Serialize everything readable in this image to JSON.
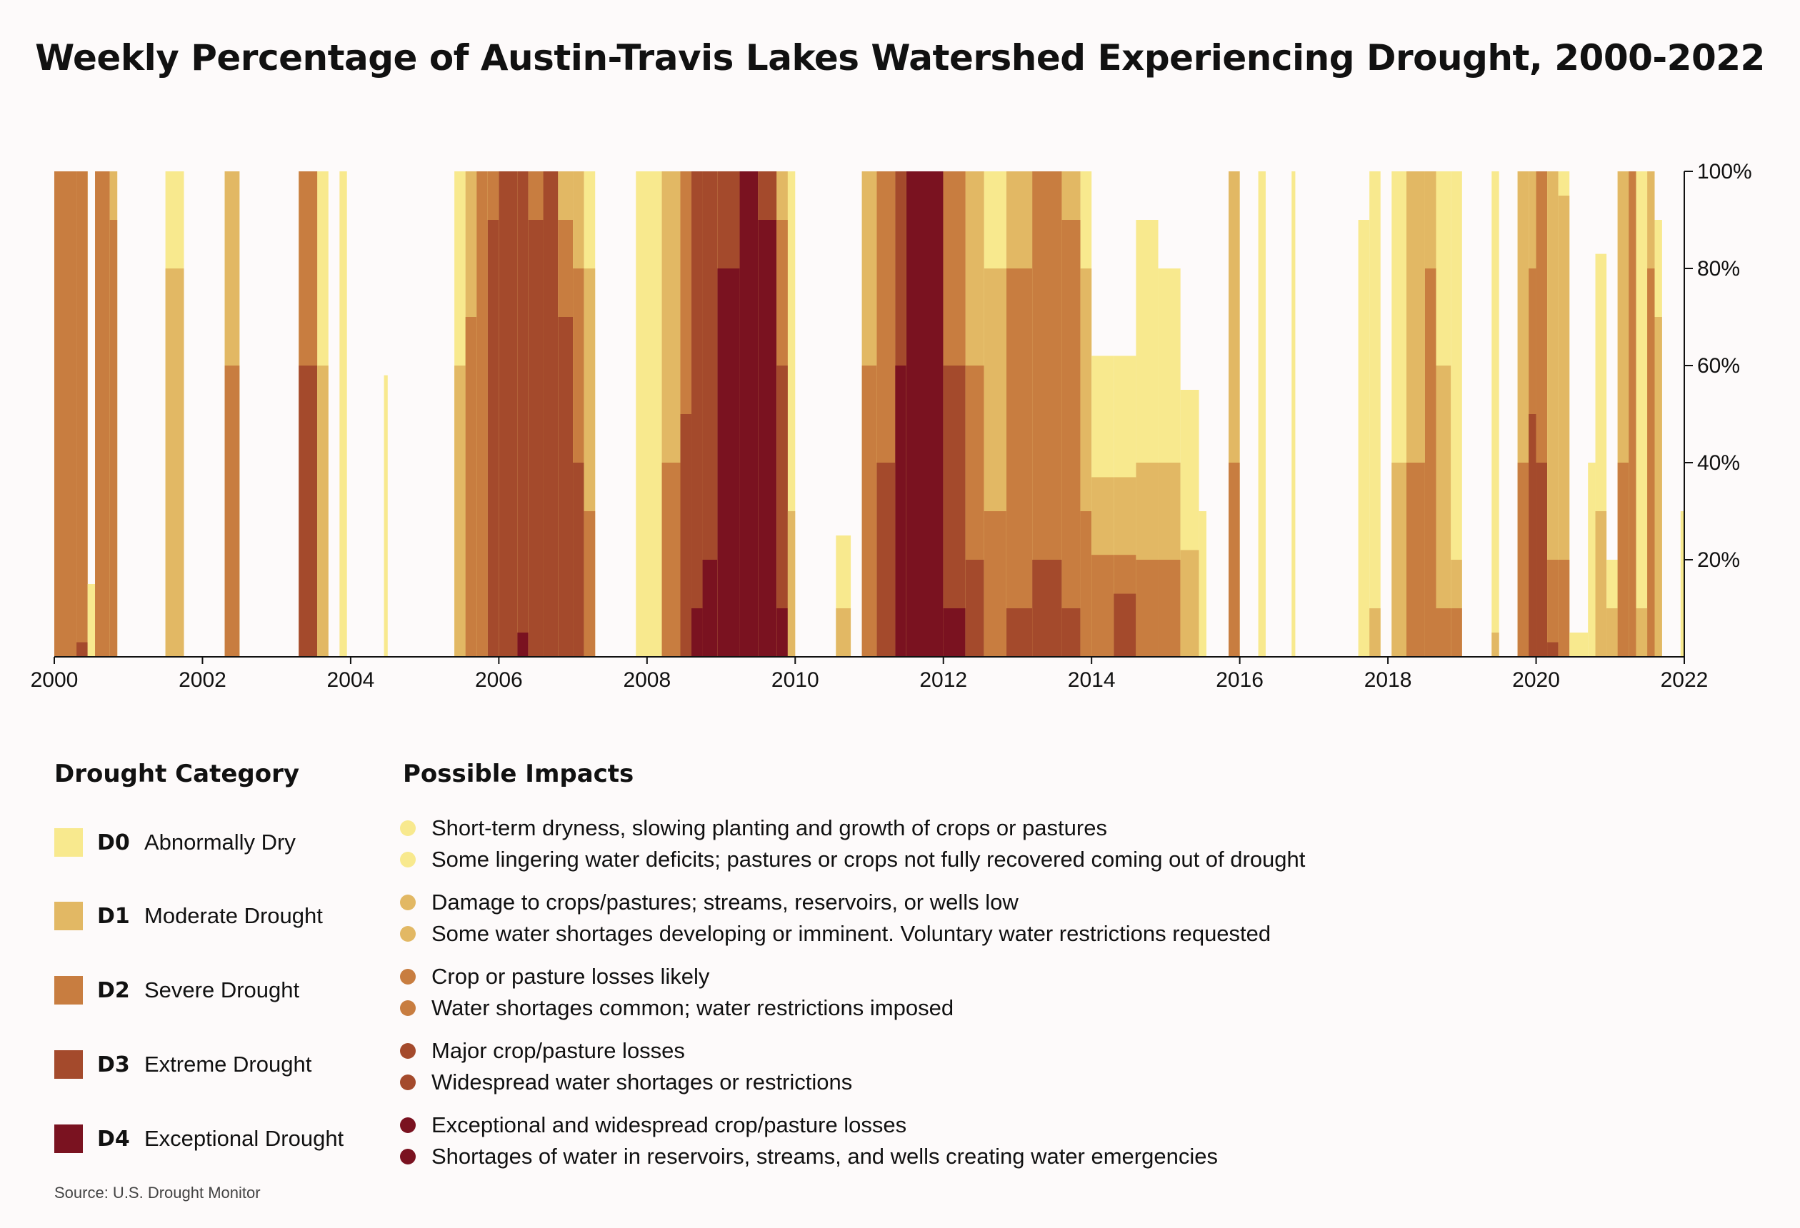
{
  "title": "Weekly Percentage of Austin-Travis Lakes Watershed Experiencing Drought, 2000-2022",
  "legend": {
    "heading": "Drought Category",
    "categories": [
      {
        "code": "D0",
        "name": "Abnormally Dry",
        "color": "#f8e98e"
      },
      {
        "code": "D1",
        "name": "Moderate Drought",
        "color": "#e2b864"
      },
      {
        "code": "D2",
        "name": "Severe Drought",
        "color": "#c87d40"
      },
      {
        "code": "D3",
        "name": "Extreme Drought",
        "color": "#a44a2c"
      },
      {
        "code": "D4",
        "name": "Exceptional Drought",
        "color": "#7a1220"
      }
    ]
  },
  "impacts": {
    "heading": "Possible Impacts",
    "groups": [
      [
        "Short-term dryness, slowing planting and growth of crops or pastures",
        "Some lingering water deficits; pastures or crops not fully recovered coming out of drought"
      ],
      [
        "Damage to crops/pastures; streams, reservoirs, or wells low",
        "Some water shortages developing or imminent. Voluntary water restrictions requested"
      ],
      [
        "Crop or pasture losses likely",
        "Water shortages common; water restrictions imposed"
      ],
      [
        "Major crop/pasture losses",
        "Widespread water shortages or restrictions"
      ],
      [
        "Exceptional and widespread crop/pasture losses",
        "Shortages of water in reservoirs, streams, and wells creating water emergencies"
      ]
    ]
  },
  "source": "Source: U.S. Drought Monitor",
  "chart_data": {
    "type": "area",
    "title": "Weekly Percentage of Austin-Travis Lakes Watershed Experiencing Drought, 2000-2022",
    "xlabel": "",
    "ylabel": "",
    "xlim": [
      2000,
      2022
    ],
    "ylim": [
      0,
      100
    ],
    "x_ticks": [
      "2000",
      "2002",
      "2004",
      "2006",
      "2008",
      "2010",
      "2012",
      "2014",
      "2016",
      "2018",
      "2020",
      "2022"
    ],
    "y_ticks": [
      "20%",
      "40%",
      "60%",
      "80%",
      "100%"
    ],
    "series_order": [
      "D0",
      "D1",
      "D2",
      "D3",
      "D4"
    ],
    "note": "Approximate cumulative percent of area in each category or worse, by date (decimal years); values hold until next point.",
    "periods": [
      {
        "x": 2000.0,
        "D0": 100,
        "D1": 100,
        "D2": 100,
        "D3": 0,
        "D4": 0
      },
      {
        "x": 2000.3,
        "D0": 100,
        "D1": 100,
        "D2": 100,
        "D3": 3,
        "D4": 0
      },
      {
        "x": 2000.45,
        "D0": 15,
        "D1": 0,
        "D2": 0,
        "D3": 0,
        "D4": 0
      },
      {
        "x": 2000.55,
        "D0": 100,
        "D1": 100,
        "D2": 100,
        "D3": 0,
        "D4": 0
      },
      {
        "x": 2000.75,
        "D0": 100,
        "D1": 100,
        "D2": 90,
        "D3": 0,
        "D4": 0
      },
      {
        "x": 2000.85,
        "D0": 0,
        "D1": 0,
        "D2": 0,
        "D3": 0,
        "D4": 0
      },
      {
        "x": 2001.5,
        "D0": 100,
        "D1": 80,
        "D2": 0,
        "D3": 0,
        "D4": 0
      },
      {
        "x": 2001.75,
        "D0": 0,
        "D1": 0,
        "D2": 0,
        "D3": 0,
        "D4": 0
      },
      {
        "x": 2002.3,
        "D0": 100,
        "D1": 100,
        "D2": 60,
        "D3": 0,
        "D4": 0
      },
      {
        "x": 2002.5,
        "D0": 0,
        "D1": 0,
        "D2": 0,
        "D3": 0,
        "D4": 0
      },
      {
        "x": 2003.3,
        "D0": 100,
        "D1": 100,
        "D2": 100,
        "D3": 60,
        "D4": 0
      },
      {
        "x": 2003.55,
        "D0": 100,
        "D1": 60,
        "D2": 0,
        "D3": 0,
        "D4": 0
      },
      {
        "x": 2003.7,
        "D0": 0,
        "D1": 0,
        "D2": 0,
        "D3": 0,
        "D4": 0
      },
      {
        "x": 2003.85,
        "D0": 100,
        "D1": 0,
        "D2": 0,
        "D3": 0,
        "D4": 0
      },
      {
        "x": 2003.95,
        "D0": 0,
        "D1": 0,
        "D2": 0,
        "D3": 0,
        "D4": 0
      },
      {
        "x": 2004.45,
        "D0": 58,
        "D1": 0,
        "D2": 0,
        "D3": 0,
        "D4": 0
      },
      {
        "x": 2004.5,
        "D0": 0,
        "D1": 0,
        "D2": 0,
        "D3": 0,
        "D4": 0
      },
      {
        "x": 2005.4,
        "D0": 100,
        "D1": 60,
        "D2": 0,
        "D3": 0,
        "D4": 0
      },
      {
        "x": 2005.55,
        "D0": 100,
        "D1": 100,
        "D2": 70,
        "D3": 0,
        "D4": 0
      },
      {
        "x": 2005.7,
        "D0": 100,
        "D1": 100,
        "D2": 100,
        "D3": 0,
        "D4": 0
      },
      {
        "x": 2005.85,
        "D0": 100,
        "D1": 100,
        "D2": 100,
        "D3": 90,
        "D4": 0
      },
      {
        "x": 2006.0,
        "D0": 100,
        "D1": 100,
        "D2": 100,
        "D3": 100,
        "D4": 0
      },
      {
        "x": 2006.25,
        "D0": 100,
        "D1": 100,
        "D2": 100,
        "D3": 100,
        "D4": 5
      },
      {
        "x": 2006.4,
        "D0": 100,
        "D1": 100,
        "D2": 100,
        "D3": 90,
        "D4": 0
      },
      {
        "x": 2006.6,
        "D0": 100,
        "D1": 100,
        "D2": 100,
        "D3": 100,
        "D4": 0
      },
      {
        "x": 2006.8,
        "D0": 100,
        "D1": 100,
        "D2": 90,
        "D3": 70,
        "D4": 0
      },
      {
        "x": 2007.0,
        "D0": 100,
        "D1": 100,
        "D2": 80,
        "D3": 40,
        "D4": 0
      },
      {
        "x": 2007.15,
        "D0": 100,
        "D1": 80,
        "D2": 30,
        "D3": 0,
        "D4": 0
      },
      {
        "x": 2007.3,
        "D0": 0,
        "D1": 0,
        "D2": 0,
        "D3": 0,
        "D4": 0
      },
      {
        "x": 2007.85,
        "D0": 100,
        "D1": 0,
        "D2": 0,
        "D3": 0,
        "D4": 0
      },
      {
        "x": 2008.2,
        "D0": 100,
        "D1": 100,
        "D2": 40,
        "D3": 0,
        "D4": 0
      },
      {
        "x": 2008.45,
        "D0": 100,
        "D1": 100,
        "D2": 100,
        "D3": 50,
        "D4": 0
      },
      {
        "x": 2008.6,
        "D0": 100,
        "D1": 100,
        "D2": 100,
        "D3": 100,
        "D4": 10
      },
      {
        "x": 2008.75,
        "D0": 100,
        "D1": 100,
        "D2": 100,
        "D3": 100,
        "D4": 20
      },
      {
        "x": 2008.95,
        "D0": 100,
        "D1": 100,
        "D2": 100,
        "D3": 100,
        "D4": 80
      },
      {
        "x": 2009.25,
        "D0": 100,
        "D1": 100,
        "D2": 100,
        "D3": 100,
        "D4": 100
      },
      {
        "x": 2009.5,
        "D0": 100,
        "D1": 100,
        "D2": 100,
        "D3": 100,
        "D4": 90
      },
      {
        "x": 2009.75,
        "D0": 100,
        "D1": 100,
        "D2": 90,
        "D3": 60,
        "D4": 10
      },
      {
        "x": 2009.9,
        "D0": 100,
        "D1": 30,
        "D2": 0,
        "D3": 0,
        "D4": 0
      },
      {
        "x": 2010.0,
        "D0": 0,
        "D1": 0,
        "D2": 0,
        "D3": 0,
        "D4": 0
      },
      {
        "x": 2010.55,
        "D0": 25,
        "D1": 10,
        "D2": 0,
        "D3": 0,
        "D4": 0
      },
      {
        "x": 2010.75,
        "D0": 0,
        "D1": 0,
        "D2": 0,
        "D3": 0,
        "D4": 0
      },
      {
        "x": 2010.9,
        "D0": 100,
        "D1": 100,
        "D2": 60,
        "D3": 0,
        "D4": 0
      },
      {
        "x": 2011.1,
        "D0": 100,
        "D1": 100,
        "D2": 100,
        "D3": 40,
        "D4": 0
      },
      {
        "x": 2011.35,
        "D0": 100,
        "D1": 100,
        "D2": 100,
        "D3": 100,
        "D4": 60
      },
      {
        "x": 2011.5,
        "D0": 100,
        "D1": 100,
        "D2": 100,
        "D3": 100,
        "D4": 100
      },
      {
        "x": 2012.0,
        "D0": 100,
        "D1": 100,
        "D2": 100,
        "D3": 60,
        "D4": 10
      },
      {
        "x": 2012.3,
        "D0": 100,
        "D1": 100,
        "D2": 60,
        "D3": 20,
        "D4": 0
      },
      {
        "x": 2012.55,
        "D0": 100,
        "D1": 80,
        "D2": 30,
        "D3": 0,
        "D4": 0
      },
      {
        "x": 2012.85,
        "D0": 100,
        "D1": 100,
        "D2": 80,
        "D3": 10,
        "D4": 0
      },
      {
        "x": 2013.2,
        "D0": 100,
        "D1": 100,
        "D2": 100,
        "D3": 20,
        "D4": 0
      },
      {
        "x": 2013.6,
        "D0": 100,
        "D1": 100,
        "D2": 90,
        "D3": 10,
        "D4": 0
      },
      {
        "x": 2013.85,
        "D0": 100,
        "D1": 80,
        "D2": 30,
        "D3": 0,
        "D4": 0
      },
      {
        "x": 2014.0,
        "D0": 62,
        "D1": 37,
        "D2": 21,
        "D3": 0,
        "D4": 0
      },
      {
        "x": 2014.3,
        "D0": 62,
        "D1": 37,
        "D2": 21,
        "D3": 13,
        "D4": 0
      },
      {
        "x": 2014.6,
        "D0": 90,
        "D1": 40,
        "D2": 20,
        "D3": 0,
        "D4": 0
      },
      {
        "x": 2014.9,
        "D0": 80,
        "D1": 40,
        "D2": 20,
        "D3": 0,
        "D4": 0
      },
      {
        "x": 2015.2,
        "D0": 55,
        "D1": 22,
        "D2": 0,
        "D3": 0,
        "D4": 0
      },
      {
        "x": 2015.45,
        "D0": 30,
        "D1": 0,
        "D2": 0,
        "D3": 0,
        "D4": 0
      },
      {
        "x": 2015.55,
        "D0": 0,
        "D1": 0,
        "D2": 0,
        "D3": 0,
        "D4": 0
      },
      {
        "x": 2015.85,
        "D0": 100,
        "D1": 100,
        "D2": 40,
        "D3": 0,
        "D4": 0
      },
      {
        "x": 2016.0,
        "D0": 0,
        "D1": 0,
        "D2": 0,
        "D3": 0,
        "D4": 0
      },
      {
        "x": 2016.25,
        "D0": 100,
        "D1": 0,
        "D2": 0,
        "D3": 0,
        "D4": 0
      },
      {
        "x": 2016.35,
        "D0": 0,
        "D1": 0,
        "D2": 0,
        "D3": 0,
        "D4": 0
      },
      {
        "x": 2016.7,
        "D0": 100,
        "D1": 0,
        "D2": 0,
        "D3": 0,
        "D4": 0
      },
      {
        "x": 2016.75,
        "D0": 0,
        "D1": 0,
        "D2": 0,
        "D3": 0,
        "D4": 0
      },
      {
        "x": 2017.6,
        "D0": 90,
        "D1": 0,
        "D2": 0,
        "D3": 0,
        "D4": 0
      },
      {
        "x": 2017.75,
        "D0": 100,
        "D1": 10,
        "D2": 0,
        "D3": 0,
        "D4": 0
      },
      {
        "x": 2017.9,
        "D0": 0,
        "D1": 0,
        "D2": 0,
        "D3": 0,
        "D4": 0
      },
      {
        "x": 2018.05,
        "D0": 100,
        "D1": 40,
        "D2": 0,
        "D3": 0,
        "D4": 0
      },
      {
        "x": 2018.25,
        "D0": 100,
        "D1": 100,
        "D2": 40,
        "D3": 0,
        "D4": 0
      },
      {
        "x": 2018.5,
        "D0": 100,
        "D1": 100,
        "D2": 80,
        "D3": 0,
        "D4": 0
      },
      {
        "x": 2018.65,
        "D0": 100,
        "D1": 60,
        "D2": 10,
        "D3": 0,
        "D4": 0
      },
      {
        "x": 2018.85,
        "D0": 100,
        "D1": 20,
        "D2": 10,
        "D3": 0,
        "D4": 0
      },
      {
        "x": 2019.0,
        "D0": 0,
        "D1": 0,
        "D2": 0,
        "D3": 0,
        "D4": 0
      },
      {
        "x": 2019.4,
        "D0": 100,
        "D1": 5,
        "D2": 0,
        "D3": 0,
        "D4": 0
      },
      {
        "x": 2019.5,
        "D0": 0,
        "D1": 0,
        "D2": 0,
        "D3": 0,
        "D4": 0
      },
      {
        "x": 2019.75,
        "D0": 100,
        "D1": 100,
        "D2": 40,
        "D3": 0,
        "D4": 0
      },
      {
        "x": 2019.9,
        "D0": 100,
        "D1": 100,
        "D2": 80,
        "D3": 50,
        "D4": 0
      },
      {
        "x": 2020.0,
        "D0": 100,
        "D1": 100,
        "D2": 100,
        "D3": 40,
        "D4": 0
      },
      {
        "x": 2020.15,
        "D0": 100,
        "D1": 100,
        "D2": 20,
        "D3": 3,
        "D4": 0
      },
      {
        "x": 2020.3,
        "D0": 100,
        "D1": 95,
        "D2": 20,
        "D3": 0,
        "D4": 0
      },
      {
        "x": 2020.45,
        "D0": 5,
        "D1": 0,
        "D2": 0,
        "D3": 0,
        "D4": 0
      },
      {
        "x": 2020.7,
        "D0": 40,
        "D1": 0,
        "D2": 0,
        "D3": 0,
        "D4": 0
      },
      {
        "x": 2020.8,
        "D0": 83,
        "D1": 30,
        "D2": 0,
        "D3": 0,
        "D4": 0
      },
      {
        "x": 2020.95,
        "D0": 20,
        "D1": 10,
        "D2": 0,
        "D3": 0,
        "D4": 0
      },
      {
        "x": 2021.1,
        "D0": 100,
        "D1": 100,
        "D2": 40,
        "D3": 0,
        "D4": 0
      },
      {
        "x": 2021.25,
        "D0": 100,
        "D1": 100,
        "D2": 100,
        "D3": 0,
        "D4": 0
      },
      {
        "x": 2021.35,
        "D0": 100,
        "D1": 10,
        "D2": 0,
        "D3": 0,
        "D4": 0
      },
      {
        "x": 2021.5,
        "D0": 100,
        "D1": 100,
        "D2": 80,
        "D3": 0,
        "D4": 0
      },
      {
        "x": 2021.6,
        "D0": 90,
        "D1": 70,
        "D2": 0,
        "D3": 0,
        "D4": 0
      },
      {
        "x": 2021.7,
        "D0": 0,
        "D1": 0,
        "D2": 0,
        "D3": 0,
        "D4": 0
      },
      {
        "x": 2021.95,
        "D0": 30,
        "D1": 0,
        "D2": 0,
        "D3": 0,
        "D4": 0
      },
      {
        "x": 2022.0,
        "D0": 0,
        "D1": 0,
        "D2": 0,
        "D3": 0,
        "D4": 0
      }
    ]
  }
}
